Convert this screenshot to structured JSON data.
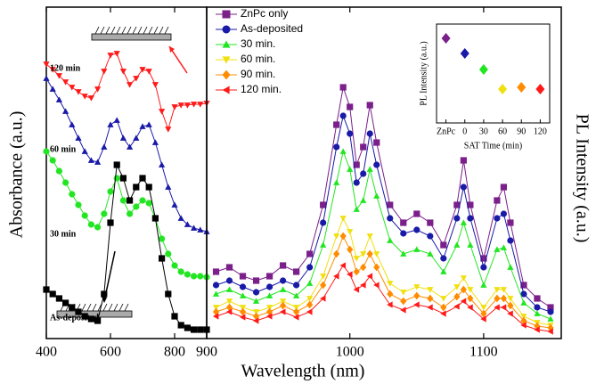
{
  "chart_data": [
    {
      "type": "line",
      "ylabel": "Absorbance (a.u.)",
      "x": [
        400,
        420,
        440,
        460,
        480,
        500,
        520,
        540,
        560,
        580,
        600,
        620,
        640,
        660,
        680,
        700,
        720,
        740,
        760,
        780,
        800,
        820,
        840,
        860,
        880,
        900
      ],
      "xlim": [
        400,
        900
      ],
      "xticks": [
        400,
        600,
        800,
        900
      ],
      "ylim": [
        0,
        372
      ],
      "series": [
        {
          "name": "120 min",
          "color": "#ff1a1a",
          "marker": "tri-down",
          "values": [
            308,
            302,
            295,
            288,
            282,
            277,
            272,
            270,
            280,
            300,
            318,
            320,
            300,
            285,
            292,
            302,
            300,
            285,
            255,
            235,
            260,
            262,
            262,
            263,
            263,
            264
          ]
        },
        {
          "name": "60 min",
          "color": "#1a1aa8",
          "marker": "tri-up",
          "values": [
            292,
            280,
            268,
            255,
            240,
            225,
            210,
            200,
            198,
            215,
            240,
            245,
            225,
            215,
            225,
            238,
            240,
            220,
            195,
            170,
            150,
            135,
            128,
            124,
            122,
            120
          ]
        },
        {
          "name": "30 min",
          "color": "#22e622",
          "marker": "circle",
          "values": [
            210,
            200,
            188,
            175,
            162,
            150,
            138,
            128,
            125,
            140,
            165,
            180,
            155,
            140,
            148,
            155,
            152,
            135,
            112,
            95,
            82,
            75,
            72,
            70,
            70,
            69
          ]
        },
        {
          "name": "As-deposited",
          "color": "#000000",
          "marker": "square",
          "values": [
            55,
            50,
            45,
            40,
            35,
            30,
            25,
            22,
            20,
            50,
            130,
            195,
            180,
            155,
            170,
            180,
            170,
            135,
            90,
            50,
            25,
            15,
            12,
            10,
            10,
            10
          ]
        }
      ]
    },
    {
      "type": "line",
      "xlabel": "Wavelength (nm)",
      "ylabel": "PL Intensity (a.u.)",
      "x": [
        900,
        910,
        920,
        930,
        940,
        950,
        960,
        970,
        980,
        990,
        995,
        1000,
        1005,
        1010,
        1015,
        1020,
        1030,
        1040,
        1050,
        1060,
        1070,
        1080,
        1085,
        1090,
        1100,
        1110,
        1115,
        1120,
        1130,
        1140,
        1150
      ],
      "xlim": [
        893,
        1158
      ],
      "xticks": [
        1000,
        1100
      ],
      "ylim": [
        0,
        372
      ],
      "series": [
        {
          "name": "ZnPc only",
          "color": "#7b1f8a",
          "marker": "square",
          "values": [
            75,
            80,
            70,
            65,
            70,
            82,
            75,
            95,
            150,
            240,
            282,
            260,
            195,
            215,
            262,
            220,
            150,
            130,
            140,
            130,
            105,
            150,
            200,
            150,
            90,
            155,
            170,
            130,
            60,
            45,
            35
          ]
        },
        {
          "name": "As-deposited",
          "color": "#1a1aa8",
          "marker": "circle",
          "values": [
            60,
            65,
            58,
            52,
            58,
            65,
            60,
            80,
            130,
            215,
            250,
            230,
            175,
            185,
            230,
            195,
            135,
            118,
            122,
            115,
            90,
            135,
            170,
            135,
            80,
            135,
            140,
            110,
            50,
            35,
            30
          ]
        },
        {
          "name": "30 min.",
          "color": "#22e622",
          "marker": "tri-up",
          "values": [
            50,
            55,
            48,
            42,
            48,
            55,
            48,
            62,
            105,
            175,
            210,
            190,
            145,
            155,
            190,
            160,
            110,
            95,
            100,
            95,
            75,
            105,
            130,
            105,
            60,
            100,
            102,
            80,
            40,
            28,
            22
          ]
        },
        {
          "name": "60 min.",
          "color": "#f0e010",
          "marker": "tri-down",
          "values": [
            35,
            42,
            35,
            30,
            35,
            42,
            35,
            45,
            70,
            115,
            135,
            120,
            90,
            95,
            115,
            95,
            62,
            52,
            58,
            55,
            45,
            58,
            68,
            55,
            35,
            55,
            55,
            45,
            25,
            18,
            15
          ]
        },
        {
          "name": "90 min.",
          "color": "#ff8c00",
          "marker": "diamond",
          "values": [
            30,
            35,
            30,
            25,
            30,
            37,
            30,
            38,
            60,
            95,
            115,
            100,
            75,
            80,
            95,
            80,
            50,
            42,
            48,
            45,
            35,
            47,
            55,
            45,
            28,
            45,
            45,
            37,
            20,
            14,
            12
          ]
        },
        {
          "name": "120 min.",
          "color": "#ff1a1a",
          "marker": "tri-left",
          "values": [
            25,
            30,
            24,
            20,
            25,
            30,
            24,
            30,
            45,
            70,
            82,
            72,
            55,
            60,
            70,
            60,
            38,
            32,
            38,
            35,
            28,
            36,
            42,
            35,
            22,
            35,
            35,
            28,
            15,
            10,
            8
          ]
        }
      ]
    },
    {
      "type": "scatter",
      "xlabel": "SAT Time (min)",
      "ylabel": "PL Intensity (a.u.)",
      "categories": [
        "ZnPc",
        "0",
        "30",
        "60",
        "90",
        "120"
      ],
      "values": [
        95,
        78,
        60,
        38,
        40,
        38
      ],
      "ylim": [
        0,
        111
      ],
      "colors": [
        "#7b1f8a",
        "#1a1aa8",
        "#22e622",
        "#f0e010",
        "#ff8c00",
        "#ff1a1a"
      ]
    }
  ]
}
